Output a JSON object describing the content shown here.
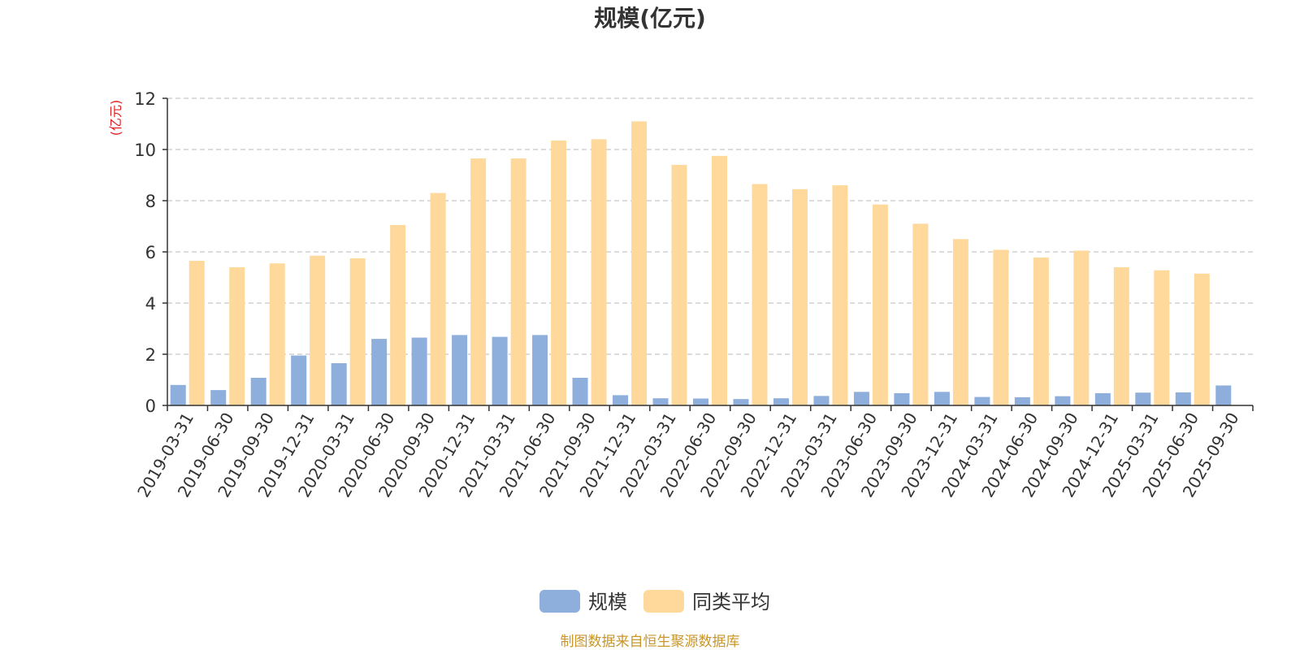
{
  "chart_data": {
    "type": "bar",
    "title": "规模(亿元)",
    "y_unit": "(亿元)",
    "xlabel": "",
    "ylabel": "",
    "ylim": [
      0,
      12
    ],
    "yticks": [
      0,
      2,
      4,
      6,
      8,
      10,
      12
    ],
    "grid": true,
    "legend_position": "bottom",
    "source_note": "制图数据来自恒生聚源数据库",
    "categories": [
      "2019-03-31",
      "2019-06-30",
      "2019-09-30",
      "2019-12-31",
      "2020-03-31",
      "2020-06-30",
      "2020-09-30",
      "2020-12-31",
      "2021-03-31",
      "2021-06-30",
      "2021-09-30",
      "2021-12-31",
      "2022-03-31",
      "2022-06-30",
      "2022-09-30",
      "2022-12-31",
      "2023-03-31",
      "2023-06-30",
      "2023-09-30",
      "2023-12-31",
      "2024-03-31",
      "2024-06-30",
      "2024-09-30",
      "2024-12-31",
      "2025-03-31",
      "2025-06-30",
      "2025-09-30"
    ],
    "series": [
      {
        "name": "规模",
        "color": "#8eaedc",
        "values": [
          0.8,
          0.6,
          1.08,
          1.95,
          1.65,
          2.6,
          2.65,
          2.75,
          2.68,
          2.75,
          1.08,
          0.4,
          0.28,
          0.27,
          0.25,
          0.28,
          0.37,
          0.53,
          0.48,
          0.53,
          0.33,
          0.32,
          0.36,
          0.48,
          0.5,
          0.51,
          0.78
        ]
      },
      {
        "name": "同类平均",
        "color": "#fed99b",
        "values": [
          5.65,
          5.4,
          5.55,
          5.85,
          5.75,
          7.05,
          8.3,
          9.65,
          9.65,
          10.35,
          10.4,
          11.1,
          9.4,
          9.75,
          8.65,
          8.45,
          8.6,
          7.85,
          7.1,
          6.5,
          6.08,
          5.78,
          6.05,
          5.4,
          5.28,
          5.15,
          null
        ]
      }
    ]
  }
}
